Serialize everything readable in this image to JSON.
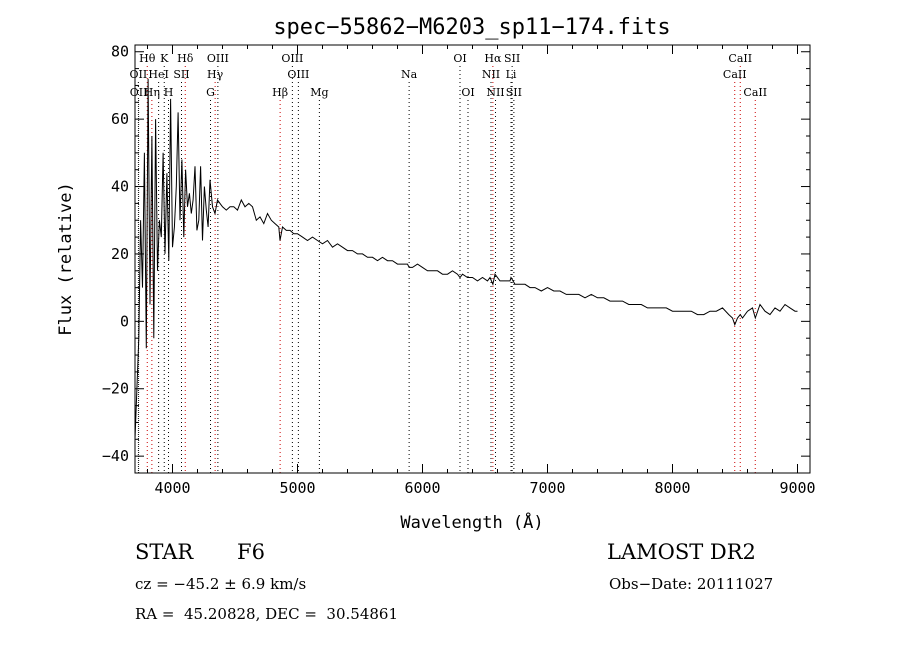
{
  "chart_data": {
    "type": "line",
    "title": "spec−55862−M6203_sp11−174.fits",
    "xlabel": "Wavelength (Å)",
    "ylabel": "Flux (relative)",
    "xlim": [
      3700,
      9100
    ],
    "ylim": [
      -45,
      82
    ],
    "x_ticks": [
      4000,
      5000,
      6000,
      7000,
      8000,
      9000
    ],
    "y_ticks": [
      -40,
      -20,
      0,
      20,
      40,
      60,
      80
    ],
    "grid": false,
    "legend": "none",
    "series": [
      {
        "color": "#000000",
        "x": [
          3700,
          3715,
          3730,
          3745,
          3760,
          3775,
          3790,
          3805,
          3820,
          3835,
          3850,
          3865,
          3880,
          3895,
          3910,
          3925,
          3940,
          3955,
          3970,
          3985,
          4000,
          4015,
          4030,
          4045,
          4060,
          4075,
          4090,
          4105,
          4120,
          4135,
          4150,
          4165,
          4180,
          4195,
          4210,
          4225,
          4240,
          4255,
          4270,
          4285,
          4300,
          4320,
          4340,
          4360,
          4380,
          4400,
          4430,
          4460,
          4490,
          4520,
          4550,
          4580,
          4610,
          4640,
          4670,
          4700,
          4730,
          4760,
          4790,
          4820,
          4850,
          4860,
          4880,
          4910,
          4940,
          4970,
          5000,
          5040,
          5080,
          5120,
          5160,
          5200,
          5240,
          5280,
          5320,
          5360,
          5400,
          5440,
          5480,
          5520,
          5560,
          5600,
          5640,
          5680,
          5720,
          5760,
          5800,
          5840,
          5880,
          5893,
          5920,
          5960,
          6000,
          6040,
          6080,
          6120,
          6160,
          6200,
          6240,
          6280,
          6300,
          6320,
          6360,
          6400,
          6440,
          6480,
          6520,
          6540,
          6563,
          6580,
          6620,
          6660,
          6700,
          6708,
          6740,
          6780,
          6820,
          6860,
          6900,
          6950,
          7000,
          7050,
          7100,
          7150,
          7200,
          7250,
          7300,
          7350,
          7400,
          7450,
          7500,
          7550,
          7600,
          7650,
          7700,
          7750,
          7800,
          7850,
          7900,
          7950,
          8000,
          8050,
          8100,
          8150,
          8200,
          8250,
          8300,
          8350,
          8400,
          8450,
          8480,
          8498,
          8520,
          8542,
          8560,
          8600,
          8640,
          8662,
          8700,
          8740,
          8780,
          8820,
          8860,
          8900,
          8940,
          8980,
          9000
        ],
        "y": [
          -35,
          -20,
          -5,
          30,
          10,
          50,
          -8,
          72,
          5,
          55,
          -5,
          60,
          15,
          30,
          25,
          50,
          20,
          44,
          18,
          66,
          22,
          28,
          40,
          62,
          30,
          48,
          25,
          45,
          34,
          38,
          32,
          36,
          46,
          27,
          30,
          46,
          24,
          40,
          33,
          28,
          42,
          34,
          32,
          36,
          35,
          34,
          33,
          34,
          34,
          33,
          36,
          34,
          35,
          34,
          30,
          31,
          29,
          32,
          30,
          29,
          28,
          24,
          28,
          27,
          27,
          26,
          26,
          25,
          24,
          25,
          24,
          23,
          24,
          22,
          23,
          22,
          21,
          21,
          20,
          20,
          19,
          19,
          18,
          19,
          18,
          18,
          17,
          17,
          17,
          16,
          16,
          17,
          16,
          15,
          15,
          15,
          14,
          14,
          15,
          14,
          13,
          14,
          13,
          13,
          12,
          13,
          12,
          13,
          11,
          14,
          12,
          12,
          12,
          13,
          11,
          11,
          11,
          10,
          10,
          9,
          10,
          9,
          9,
          8,
          8,
          8,
          7,
          8,
          7,
          7,
          6,
          6,
          6,
          5,
          5,
          5,
          4,
          4,
          4,
          4,
          3,
          3,
          3,
          3,
          2,
          2,
          3,
          3,
          4,
          2,
          1,
          -1,
          1,
          2,
          1,
          3,
          4,
          1,
          5,
          3,
          2,
          4,
          3,
          5,
          4,
          3,
          3
        ]
      }
    ],
    "lines": [
      {
        "label": "Hθ",
        "x": 3798,
        "row": 1,
        "color": "#cc0000"
      },
      {
        "label": "K",
        "x": 3934,
        "row": 1,
        "color": "#000000"
      },
      {
        "label": "Hδ",
        "x": 4102,
        "row": 1,
        "color": "#cc0000"
      },
      {
        "label": "OIII",
        "x": 4363,
        "row": 1,
        "color": "#000000"
      },
      {
        "label": "OIII",
        "x": 4959,
        "row": 1,
        "color": "#000000"
      },
      {
        "label": "OI",
        "x": 6300,
        "row": 1,
        "color": "#000000"
      },
      {
        "label": "Hα",
        "x": 6563,
        "row": 1,
        "color": "#cc0000"
      },
      {
        "label": "SII",
        "x": 6717,
        "row": 1,
        "color": "#000000"
      },
      {
        "label": "CaII",
        "x": 8542,
        "row": 1,
        "color": "#cc0000"
      },
      {
        "label": "OII",
        "x": 3727,
        "row": 2,
        "color": "#000000"
      },
      {
        "label": "HeI",
        "x": 3889,
        "row": 2,
        "color": "#000000"
      },
      {
        "label": "SII",
        "x": 4072,
        "row": 2,
        "color": "#000000"
      },
      {
        "label": "Hγ",
        "x": 4341,
        "row": 2,
        "color": "#cc0000"
      },
      {
        "label": "OIII",
        "x": 5007,
        "row": 2,
        "color": "#000000"
      },
      {
        "label": "Na",
        "x": 5893,
        "row": 2,
        "color": "#000000"
      },
      {
        "label": "NII",
        "x": 6548,
        "row": 2,
        "color": "#000000"
      },
      {
        "label": "Li",
        "x": 6708,
        "row": 2,
        "color": "#000000"
      },
      {
        "label": "CaII",
        "x": 8498,
        "row": 2,
        "color": "#cc0000"
      },
      {
        "label": "OII",
        "x": 3729,
        "row": 3,
        "color": "#000000"
      },
      {
        "label": "Hη",
        "x": 3835,
        "row": 3,
        "color": "#cc0000"
      },
      {
        "label": "H",
        "x": 3968,
        "row": 3,
        "color": "#000000"
      },
      {
        "label": "G",
        "x": 4304,
        "row": 3,
        "color": "#000000"
      },
      {
        "label": "Hβ",
        "x": 4861,
        "row": 3,
        "color": "#cc0000"
      },
      {
        "label": "Mg",
        "x": 5175,
        "row": 3,
        "color": "#000000"
      },
      {
        "label": "OI",
        "x": 6364,
        "row": 3,
        "color": "#000000"
      },
      {
        "label": "NII",
        "x": 6584,
        "row": 3,
        "color": "#000000"
      },
      {
        "label": "SII",
        "x": 6731,
        "row": 3,
        "color": "#000000"
      },
      {
        "label": "CaII",
        "x": 8662,
        "row": 3,
        "color": "#cc0000"
      }
    ]
  },
  "info": {
    "object_class": "STAR",
    "subclass": "F6",
    "survey": "LAMOST DR2",
    "cz": "cz = −45.2 ± 6.9 km/s",
    "obs_date": "Obs−Date: 20111027",
    "coords": "RA =  45.20828, DEC =  30.54861"
  }
}
